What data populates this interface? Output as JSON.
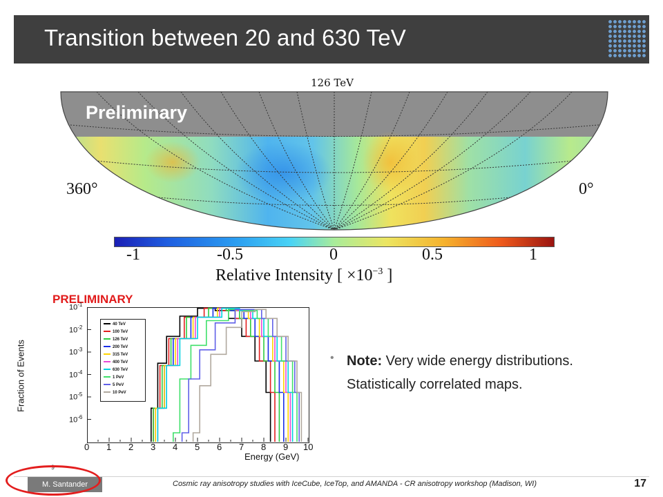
{
  "header": {
    "title": "Transition between 20 and 630 TeV",
    "logo_icon": "dot-grid-logo-icon"
  },
  "skymap": {
    "title": "126 TeV",
    "watermark": "Preliminary",
    "left_label": "360°",
    "right_label": "0°",
    "colorbar": {
      "ticks": [
        "-1",
        "-0.5",
        "0",
        "0.5",
        "1"
      ],
      "label": "Relative Intensity [ ×10",
      "label_exponent": "−3",
      "label_end": " ]",
      "colors": [
        "#1b1fb5",
        "#49d3f5",
        "#a9ec9a",
        "#ece561",
        "#9a1410"
      ]
    }
  },
  "chart_data": {
    "type": "line",
    "watermark": "PRELIMINARY",
    "xlabel": "Energy (GeV)",
    "ylabel": "Fraction of Events",
    "xlim": [
      0,
      10
    ],
    "ylim_log10": [
      -7,
      -1
    ],
    "x_ticks": [
      "0",
      "1",
      "2",
      "3",
      "4",
      "5",
      "6",
      "7",
      "8",
      "9",
      "10"
    ],
    "y_ticks": [
      "10",
      "10",
      "10",
      "10",
      "10",
      "10"
    ],
    "y_tick_exponents": [
      "-1",
      "-2",
      "-3",
      "-4",
      "-5",
      "-6"
    ],
    "series": [
      {
        "name": "40 TeV",
        "color": "#000000",
        "x": [
          2.9,
          3.2,
          3.6,
          4.2,
          5.0,
          5.8,
          6.4,
          7.0,
          7.6,
          8.1,
          8.3
        ],
        "log10y": [
          -5.5,
          -3.5,
          -2.3,
          -1.4,
          -1.05,
          -1.15,
          -1.5,
          -2.3,
          -3.4,
          -4.8,
          -6.6
        ]
      },
      {
        "name": "100 TeV",
        "color": "#e31e1e",
        "x": [
          3.0,
          3.3,
          3.7,
          4.4,
          5.3,
          6.1,
          6.7,
          7.2,
          7.8,
          8.3,
          8.5
        ],
        "log10y": [
          -5.5,
          -3.6,
          -2.4,
          -1.45,
          -1.05,
          -1.15,
          -1.5,
          -2.3,
          -3.4,
          -4.8,
          -6.6
        ]
      },
      {
        "name": "126 TeV",
        "color": "#2ecc40",
        "x": [
          3.0,
          3.4,
          3.8,
          4.5,
          5.5,
          6.3,
          6.9,
          7.4,
          8.0,
          8.5,
          8.7
        ],
        "log10y": [
          -5.5,
          -3.6,
          -2.4,
          -1.45,
          -1.05,
          -1.15,
          -1.5,
          -2.3,
          -3.4,
          -4.8,
          -6.6
        ]
      },
      {
        "name": "200 TeV",
        "color": "#1a2ee8",
        "x": [
          3.1,
          3.5,
          3.9,
          4.7,
          5.7,
          6.5,
          7.1,
          7.6,
          8.2,
          8.7,
          8.9
        ],
        "log10y": [
          -5.5,
          -3.6,
          -2.4,
          -1.45,
          -1.05,
          -1.15,
          -1.5,
          -2.3,
          -3.4,
          -4.8,
          -6.6
        ]
      },
      {
        "name": "315 TeV",
        "color": "#ffd400",
        "x": [
          3.1,
          3.5,
          4.0,
          4.8,
          5.9,
          6.7,
          7.3,
          7.8,
          8.4,
          8.9,
          9.1
        ],
        "log10y": [
          -5.5,
          -3.6,
          -2.4,
          -1.45,
          -1.05,
          -1.15,
          -1.5,
          -2.3,
          -3.4,
          -4.8,
          -6.6
        ]
      },
      {
        "name": "400 TeV",
        "color": "#e84ad8",
        "x": [
          3.2,
          3.6,
          4.1,
          4.9,
          6.0,
          6.8,
          7.4,
          7.9,
          8.5,
          9.0,
          9.2
        ],
        "log10y": [
          -5.5,
          -3.6,
          -2.4,
          -1.45,
          -1.05,
          -1.15,
          -1.5,
          -2.3,
          -3.4,
          -4.8,
          -6.6
        ]
      },
      {
        "name": "630 TeV",
        "color": "#00d2e0",
        "x": [
          3.2,
          3.6,
          4.2,
          5.0,
          6.1,
          6.9,
          7.5,
          8.0,
          8.6,
          9.1,
          9.3
        ],
        "log10y": [
          -5.5,
          -3.6,
          -2.4,
          -1.45,
          -1.05,
          -1.15,
          -1.5,
          -2.3,
          -3.4,
          -4.8,
          -6.6
        ]
      },
      {
        "name": "1 PeV",
        "color": "#3fe06a",
        "x": [
          3.9,
          4.2,
          4.7,
          5.4,
          6.4,
          7.1,
          7.7,
          8.2,
          8.8,
          9.3,
          9.5
        ],
        "log10y": [
          -6.6,
          -4.2,
          -2.7,
          -1.6,
          -1.1,
          -1.15,
          -1.5,
          -2.3,
          -3.4,
          -4.8,
          -6.6
        ]
      },
      {
        "name": "5 PeV",
        "color": "#6060e8",
        "x": [
          4.3,
          4.6,
          5.1,
          5.8,
          6.7,
          7.3,
          7.9,
          8.4,
          9.0,
          9.4,
          9.6
        ],
        "log10y": [
          -6.6,
          -4.2,
          -2.9,
          -1.7,
          -1.1,
          -1.1,
          -1.5,
          -2.3,
          -3.4,
          -4.8,
          -6.6
        ]
      },
      {
        "name": "10 PeV",
        "color": "#b0a89e",
        "x": [
          4.8,
          5.1,
          5.6,
          6.3,
          7.0,
          7.6,
          8.1,
          8.6,
          9.1,
          9.5,
          9.7
        ],
        "log10y": [
          -6.6,
          -4.5,
          -3.1,
          -1.9,
          -1.2,
          -1.1,
          -1.5,
          -2.3,
          -3.4,
          -4.8,
          -6.6
        ]
      }
    ]
  },
  "note": {
    "bold": "Note:",
    "text": " Very wide energy distributions. Statistically correlated maps."
  },
  "footer": {
    "author": "M. Santander",
    "citation": "Cosmic ray anisotropy studies with IceCube, IceTop, and AMANDA - CR anisotropy workshop (Madison, WI)",
    "page": "17",
    "small_mark": "9"
  }
}
